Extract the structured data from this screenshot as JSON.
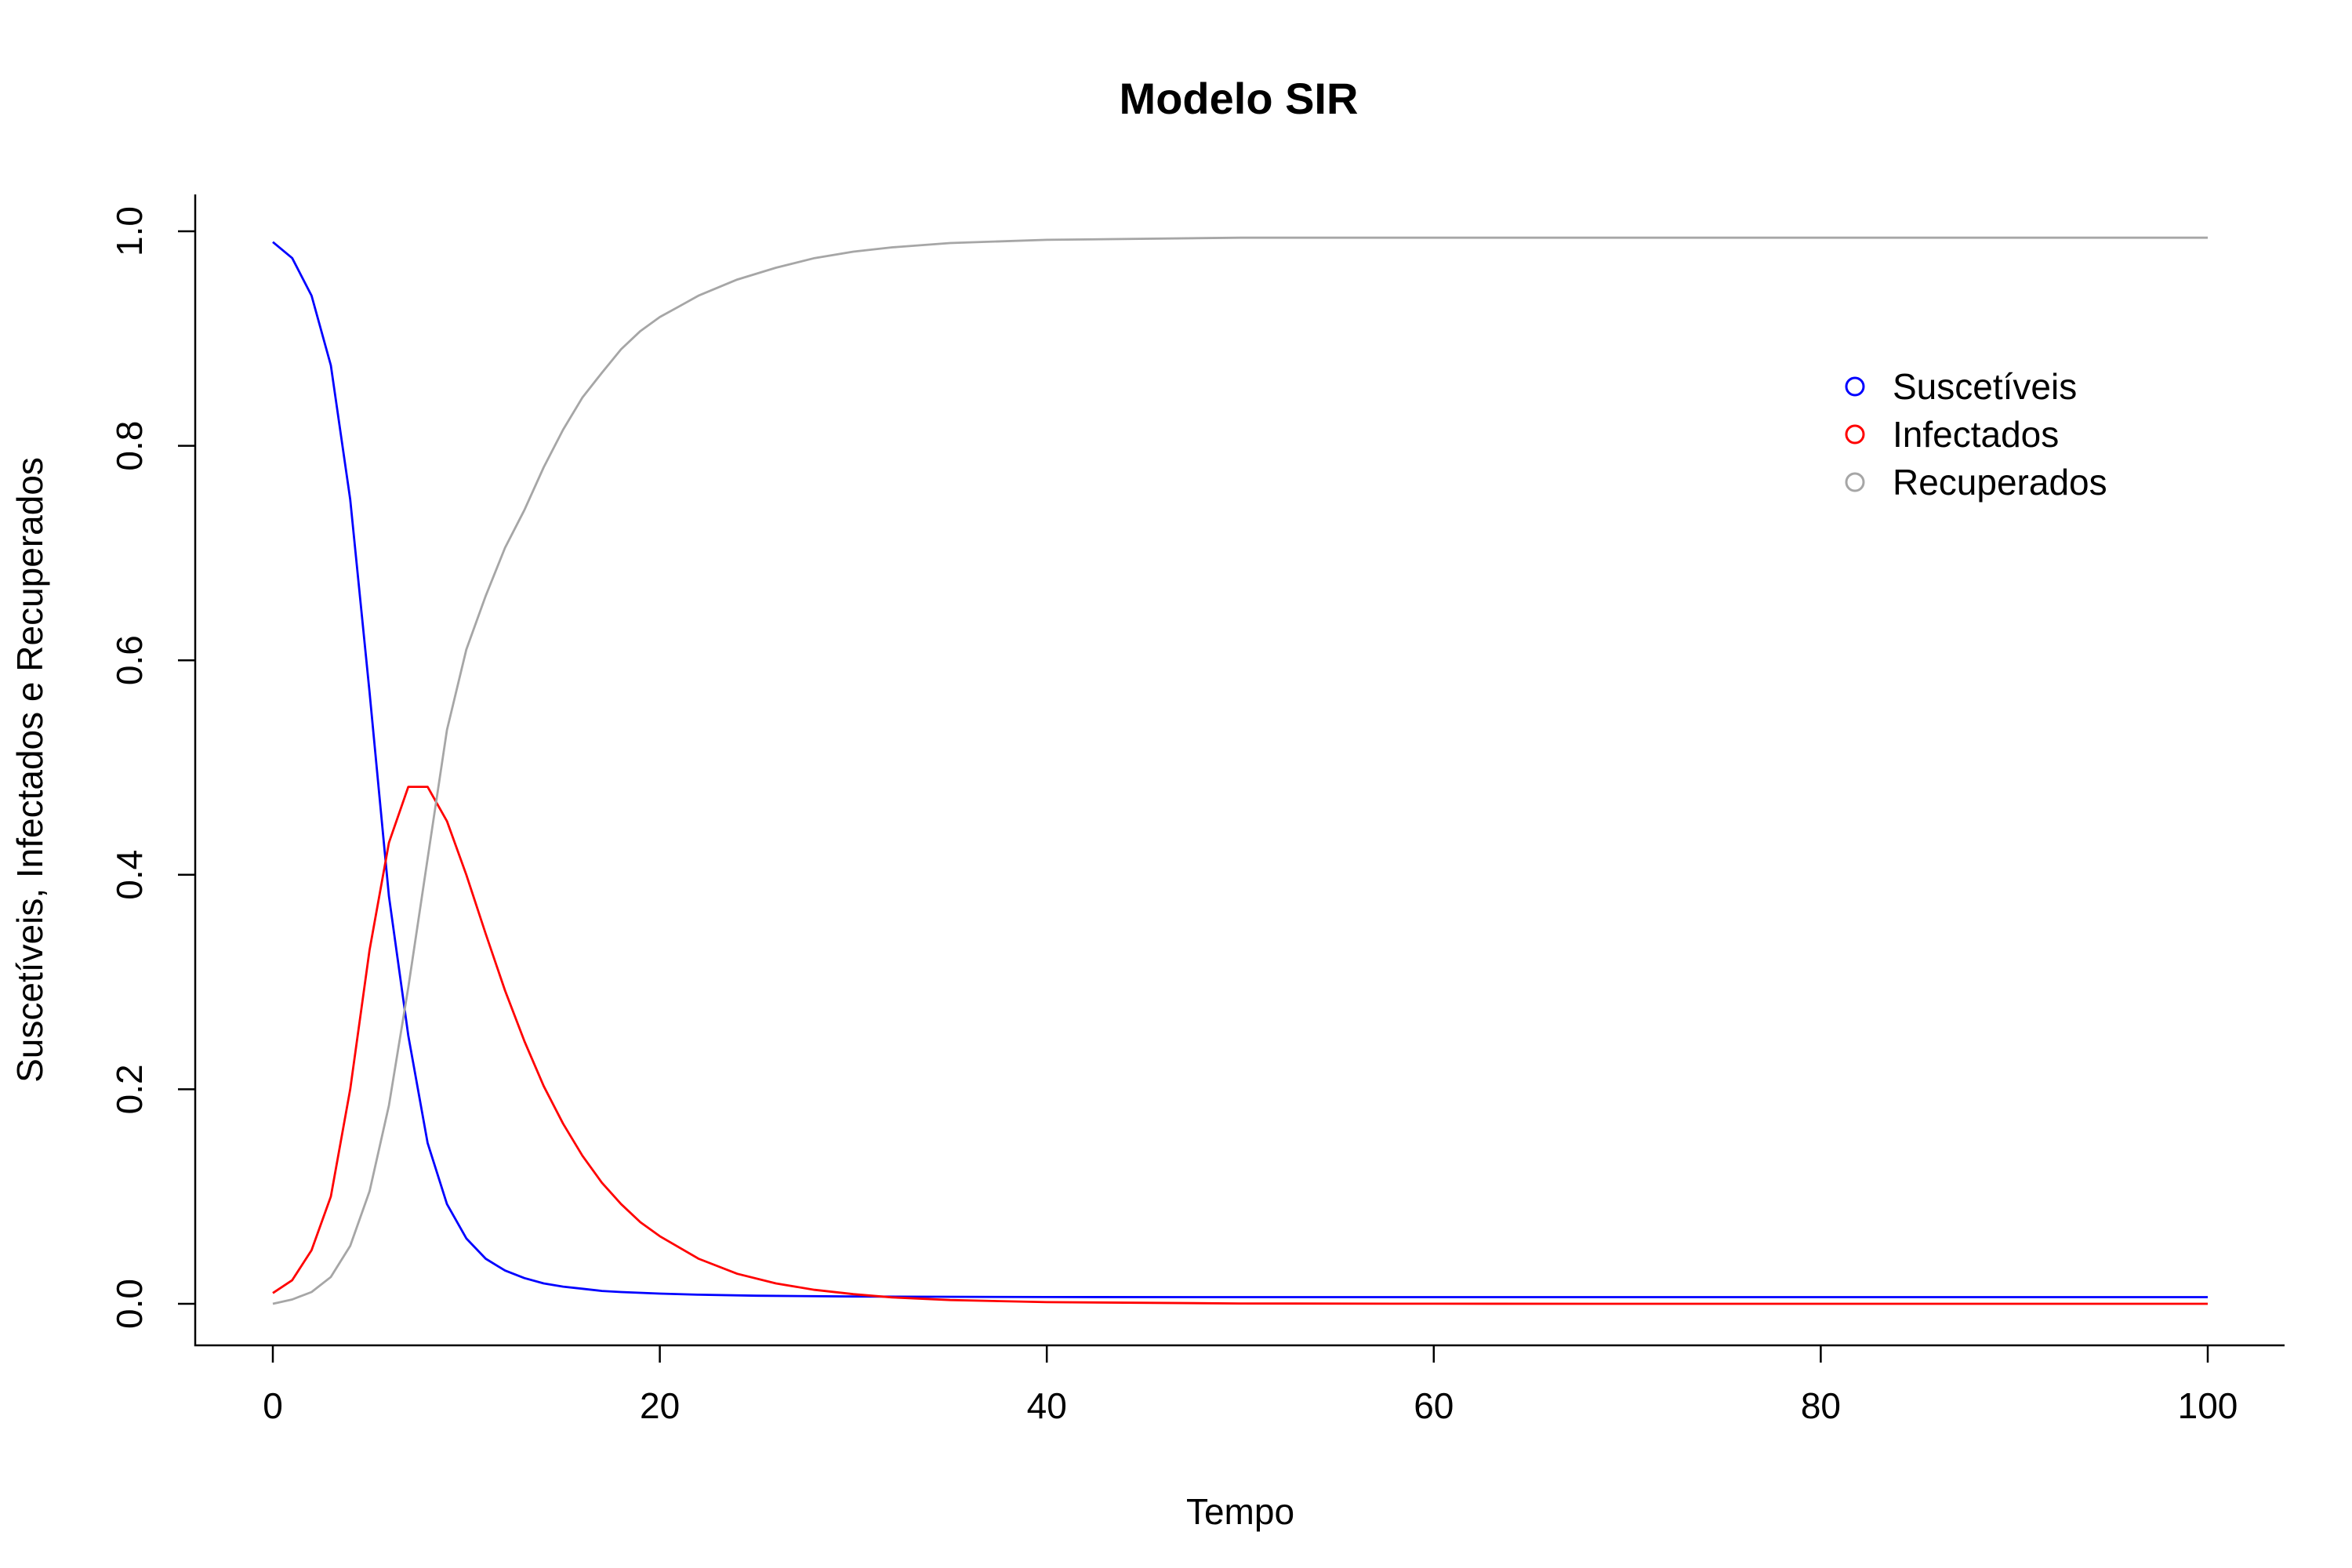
{
  "chart_data": {
    "type": "line",
    "title": "Modelo SIR",
    "xlabel": "Tempo",
    "ylabel": "Suscetíveis, Infectados e Recuperados",
    "xlim": [
      0,
      100
    ],
    "ylim": [
      0,
      1
    ],
    "xticks": [
      0,
      20,
      40,
      60,
      80,
      100
    ],
    "yticks": [
      0.0,
      0.2,
      0.4,
      0.6,
      0.8,
      1.0
    ],
    "xtick_labels": [
      "0",
      "20",
      "40",
      "60",
      "80",
      "100"
    ],
    "ytick_labels": [
      "0.0",
      "0.2",
      "0.4",
      "0.6",
      "0.8",
      "1.0"
    ],
    "grid": false,
    "legend_position": "top-right",
    "series": [
      {
        "name": "Suscetíveis",
        "color": "#0000ff",
        "x": [
          0,
          1,
          2,
          3,
          4,
          5,
          6,
          7,
          8,
          9,
          10,
          11,
          12,
          13,
          14,
          15,
          16,
          17,
          18,
          20,
          22,
          25,
          30,
          40,
          50,
          60,
          70,
          80,
          90,
          100
        ],
        "y": [
          0.99,
          0.975,
          0.94,
          0.875,
          0.75,
          0.57,
          0.38,
          0.25,
          0.15,
          0.093,
          0.061,
          0.042,
          0.031,
          0.024,
          0.019,
          0.016,
          0.014,
          0.012,
          0.011,
          0.0095,
          0.0085,
          0.0075,
          0.0068,
          0.0063,
          0.0062,
          0.0062,
          0.0062,
          0.0062,
          0.0062,
          0.0062
        ]
      },
      {
        "name": "Infectados",
        "color": "#ff0000",
        "x": [
          0,
          1,
          2,
          3,
          4,
          5,
          6,
          7,
          8,
          9,
          10,
          11,
          12,
          13,
          14,
          15,
          16,
          17,
          18,
          19,
          20,
          22,
          24,
          26,
          28,
          30,
          32,
          35,
          40,
          50,
          60,
          70,
          80,
          90,
          100
        ],
        "y": [
          0.01,
          0.022,
          0.05,
          0.1,
          0.2,
          0.33,
          0.43,
          0.482,
          0.482,
          0.45,
          0.4,
          0.345,
          0.292,
          0.245,
          0.203,
          0.168,
          0.138,
          0.113,
          0.093,
          0.076,
          0.063,
          0.042,
          0.028,
          0.019,
          0.013,
          0.009,
          0.006,
          0.0035,
          0.0015,
          0.0003,
          0.0001,
          0.0,
          0.0,
          0.0,
          0.0
        ]
      },
      {
        "name": "Recuperados",
        "color": "#a6a6a6",
        "x": [
          0,
          1,
          2,
          3,
          4,
          5,
          6,
          7,
          8,
          9,
          10,
          11,
          12,
          13,
          14,
          15,
          16,
          17,
          18,
          19,
          20,
          21,
          22,
          24,
          26,
          28,
          30,
          32,
          35,
          40,
          50,
          60,
          70,
          80,
          90,
          100
        ],
        "y": [
          0.0,
          0.004,
          0.011,
          0.025,
          0.054,
          0.105,
          0.185,
          0.295,
          0.415,
          0.535,
          0.61,
          0.66,
          0.705,
          0.74,
          0.78,
          0.815,
          0.845,
          0.868,
          0.89,
          0.907,
          0.92,
          0.93,
          0.94,
          0.955,
          0.966,
          0.975,
          0.981,
          0.985,
          0.989,
          0.992,
          0.994,
          0.994,
          0.994,
          0.994,
          0.994,
          0.994
        ]
      }
    ]
  }
}
